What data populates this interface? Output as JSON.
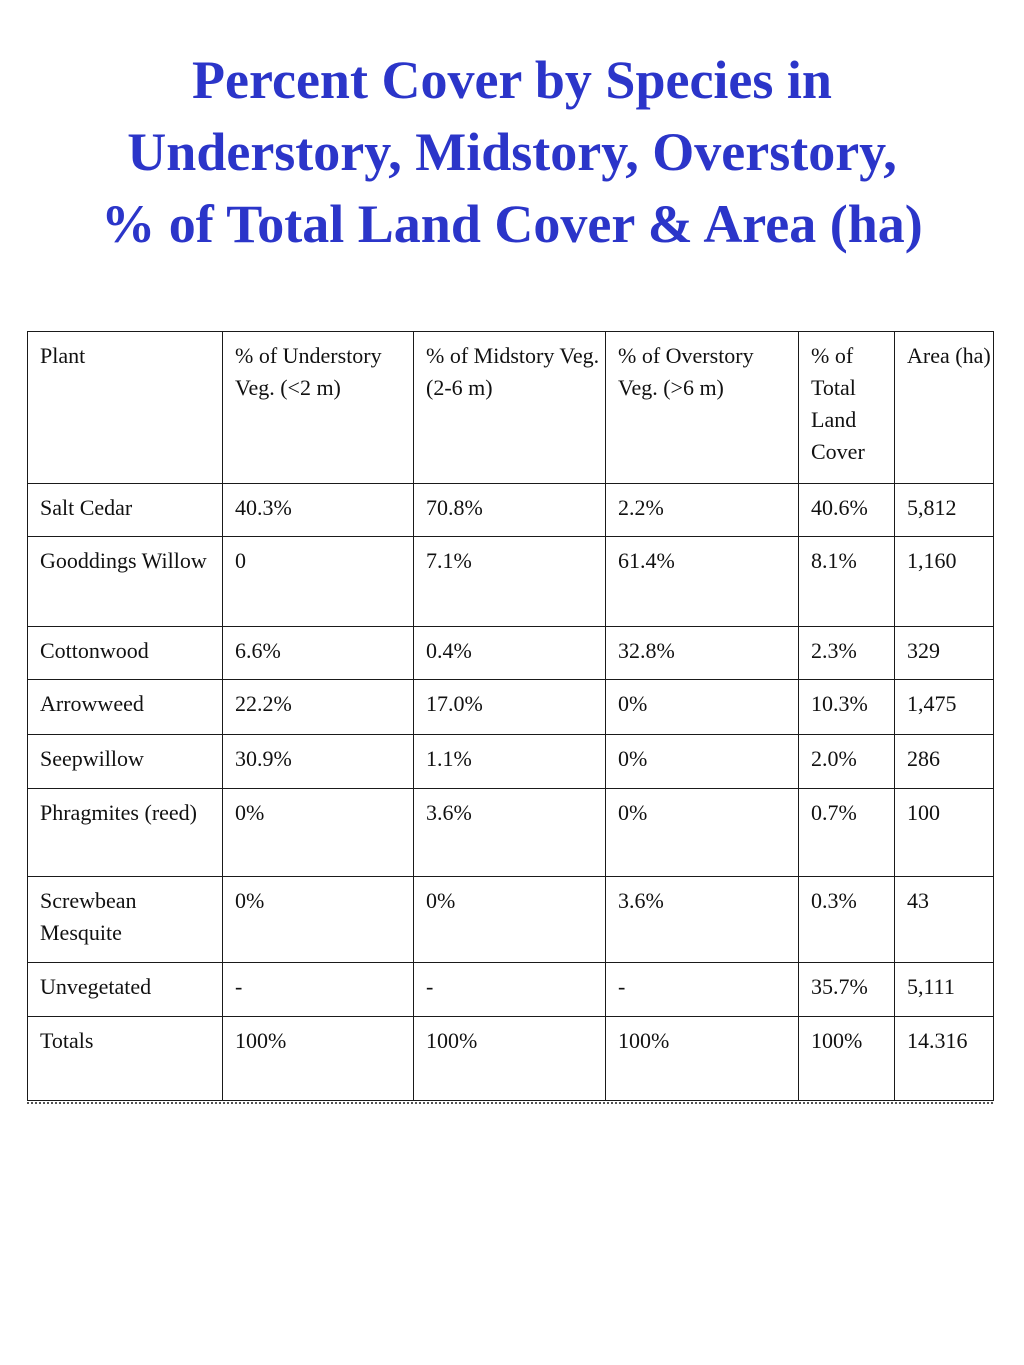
{
  "title": {
    "line1": "Percent Cover by Species in",
    "line2": "Understory, Midstory, Overstory,",
    "line3": "% of Total Land Cover & Area (ha)"
  },
  "table": {
    "headers": [
      "Plant",
      "% of Understory Veg. (<2 m)",
      "% of Midstory Veg. (2-6 m)",
      "% of Overstory Veg. (>6 m)",
      "% of Total Land Cover",
      "Area (ha)"
    ],
    "rows": [
      [
        "Salt Cedar",
        "40.3%",
        "70.8%",
        "2.2%",
        "40.6%",
        "5,812"
      ],
      [
        "Gooddings Willow",
        "0",
        "7.1%",
        "61.4%",
        "8.1%",
        "1,160"
      ],
      [
        "Cottonwood",
        "6.6%",
        "0.4%",
        "32.8%",
        "2.3%",
        "329"
      ],
      [
        "Arrowweed",
        "22.2%",
        "17.0%",
        "0%",
        "10.3%",
        "1,475"
      ],
      [
        "Seepwillow",
        "30.9%",
        "1.1%",
        "0%",
        "2.0%",
        "286"
      ],
      [
        "Phragmites (reed)",
        "0%",
        "3.6%",
        "0%",
        "0.7%",
        "100"
      ],
      [
        "Screwbean Mesquite",
        "0%",
        "0%",
        "3.6%",
        "0.3%",
        "43"
      ],
      [
        "Unvegetated",
        "-",
        "-",
        "-",
        "35.7%",
        "5,111"
      ],
      [
        "Totals",
        "100%",
        "100%",
        "100%",
        "100%",
        "14.316"
      ]
    ]
  }
}
